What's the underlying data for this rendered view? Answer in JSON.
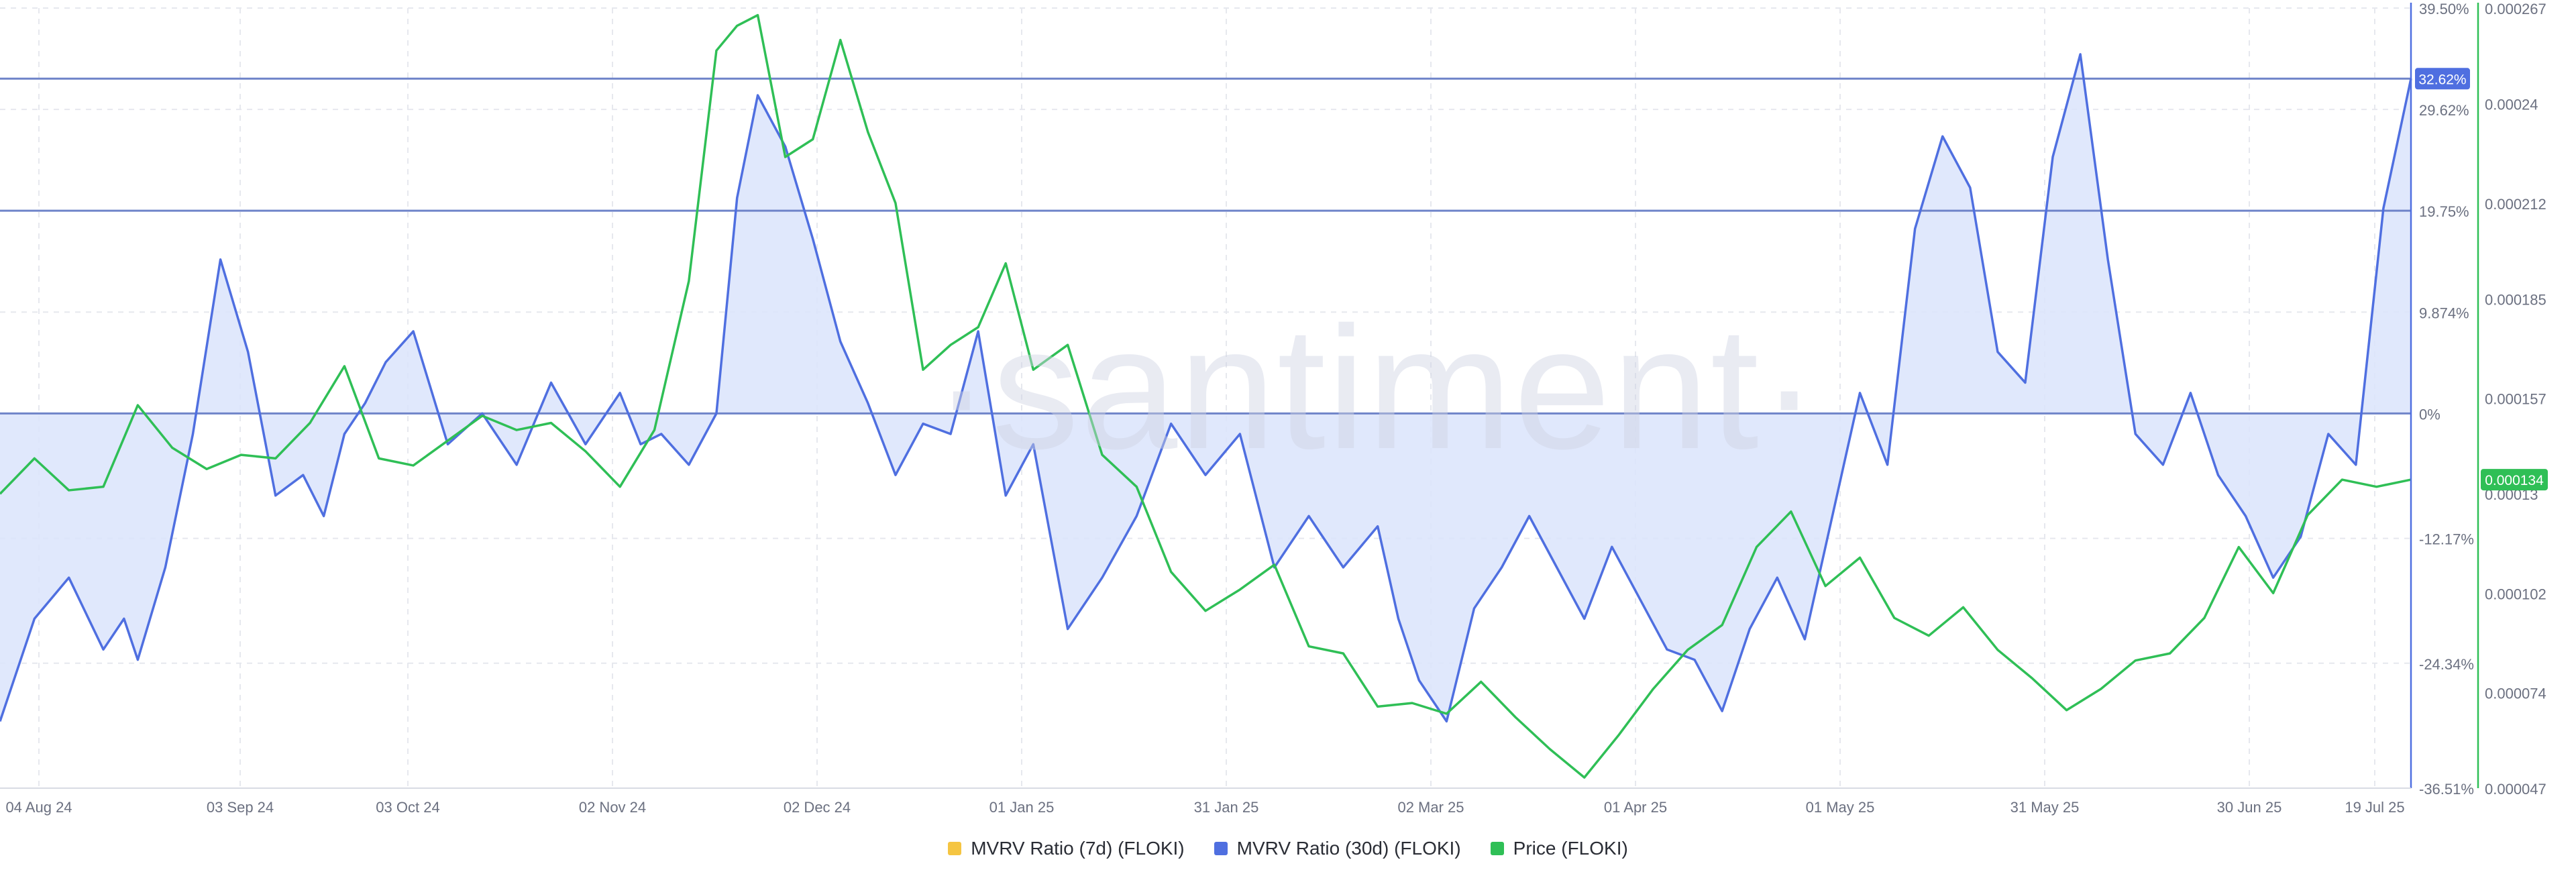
{
  "chart_data": {
    "type": "line",
    "watermark": "·santiment·",
    "colors": {
      "mvrv7d": "#f5c542",
      "mvrv30d": "#4f6fe0",
      "price": "#2fbf56",
      "fill": "#dbe4fb",
      "grid": "#e6e8ee",
      "hline": "#6f84c9"
    },
    "x_ticks": [
      "04 Aug 24",
      "03 Sep 24",
      "03 Oct 24",
      "02 Nov 24",
      "02 Dec 24",
      "01 Jan 25",
      "31 Jan 25",
      "02 Mar 25",
      "01 Apr 25",
      "01 May 25",
      "31 May 25",
      "30 Jun 25",
      "19 Jul 25"
    ],
    "y_left": {
      "ticks": [
        "39.50%",
        "29.62%",
        "19.75%",
        "9.874%",
        "0%",
        "-12.17%",
        "-24.34%",
        "-36.51%"
      ],
      "values": [
        39.5,
        29.62,
        19.75,
        9.874,
        0,
        -12.17,
        -24.34,
        -36.51
      ],
      "range": [
        -36.51,
        39.5
      ]
    },
    "y_right": {
      "ticks": [
        "0.000267",
        "0.00024",
        "0.000212",
        "0.000185",
        "0.000157",
        "0.00013",
        "0.000102",
        "0.000074",
        "0.000047"
      ],
      "values": [
        0.000267,
        0.00024,
        0.000212,
        0.000185,
        0.000157,
        0.00013,
        0.000102,
        7.4e-05,
        4.7e-05
      ],
      "range": [
        4.7e-05,
        0.000267
      ]
    },
    "horizontal_lines": [
      32.62,
      19.75,
      0
    ],
    "badges": {
      "mvrv30d": "32.62%",
      "price": "0.000134"
    },
    "legend": [
      "MVRV Ratio (7d) (FLOKI)",
      "MVRV Ratio (30d) (FLOKI)",
      "Price (FLOKI)"
    ],
    "x_range": [
      0,
      350
    ],
    "series": [
      {
        "name": "MVRV Ratio (30d) (FLOKI)",
        "axis": "left",
        "x": [
          0,
          5,
          10,
          15,
          18,
          20,
          24,
          28,
          32,
          36,
          40,
          44,
          47,
          50,
          53,
          56,
          60,
          65,
          70,
          75,
          80,
          85,
          90,
          93,
          96,
          100,
          104,
          107,
          110,
          114,
          118,
          122,
          126,
          130,
          134,
          138,
          142,
          146,
          150,
          155,
          160,
          165,
          170,
          175,
          180,
          185,
          190,
          195,
          200,
          203,
          206,
          210,
          214,
          218,
          222,
          226,
          230,
          234,
          238,
          242,
          246,
          250,
          254,
          258,
          262,
          266,
          270,
          274,
          278,
          282,
          286,
          290,
          294,
          298,
          302,
          306,
          310,
          314,
          318,
          322,
          326,
          330,
          334,
          338,
          342,
          346,
          350
        ],
        "y": [
          -30,
          -20,
          -16,
          -23,
          -20,
          -24,
          -15,
          -2,
          15,
          6,
          -8,
          -6,
          -10,
          -2,
          1,
          5,
          8,
          -3,
          0,
          -5,
          3,
          -3,
          2,
          -3,
          -2,
          -5,
          0,
          21,
          31,
          26,
          17,
          7,
          1,
          -6,
          -1,
          -2,
          8,
          -8,
          -3,
          -21,
          -16,
          -10,
          -1,
          -6,
          -2,
          -15,
          -10,
          -15,
          -11,
          -20,
          -26,
          -30,
          -19,
          -15,
          -10,
          -15,
          -20,
          -13,
          -18,
          -23,
          -24,
          -29,
          -21,
          -16,
          -22,
          -10,
          2,
          -5,
          18,
          27,
          22,
          6,
          3,
          25,
          35,
          15,
          -2,
          -5,
          2,
          -6,
          -10,
          -16,
          -12,
          -2,
          -5,
          20,
          32.62
        ]
      },
      {
        "name": "Price (FLOKI)",
        "axis": "right",
        "x": [
          0,
          5,
          10,
          15,
          20,
          25,
          30,
          35,
          40,
          45,
          50,
          55,
          60,
          65,
          70,
          75,
          80,
          85,
          90,
          95,
          100,
          104,
          107,
          110,
          114,
          118,
          122,
          126,
          130,
          134,
          138,
          142,
          146,
          150,
          155,
          160,
          165,
          170,
          175,
          180,
          185,
          190,
          195,
          200,
          205,
          210,
          215,
          220,
          225,
          230,
          235,
          240,
          245,
          250,
          255,
          260,
          265,
          270,
          275,
          280,
          285,
          290,
          295,
          300,
          305,
          310,
          315,
          320,
          325,
          330,
          335,
          340,
          345,
          350
        ],
        "y": [
          0.00013,
          0.00014,
          0.000131,
          0.000132,
          0.000155,
          0.000143,
          0.000137,
          0.000141,
          0.00014,
          0.00015,
          0.000166,
          0.00014,
          0.000138,
          0.000145,
          0.000152,
          0.000148,
          0.00015,
          0.000142,
          0.000132,
          0.000148,
          0.00019,
          0.000255,
          0.000262,
          0.000265,
          0.000225,
          0.00023,
          0.000258,
          0.000232,
          0.000212,
          0.000165,
          0.000172,
          0.000177,
          0.000195,
          0.000165,
          0.000172,
          0.000141,
          0.000132,
          0.000108,
          9.7e-05,
          0.000103,
          0.00011,
          8.7e-05,
          8.5e-05,
          7e-05,
          7.1e-05,
          6.8e-05,
          7.7e-05,
          6.7e-05,
          5.8e-05,
          5e-05,
          6.2e-05,
          7.5e-05,
          8.6e-05,
          9.3e-05,
          0.000115,
          0.000125,
          0.000104,
          0.000112,
          9.5e-05,
          9e-05,
          9.8e-05,
          8.6e-05,
          7.8e-05,
          6.9e-05,
          7.5e-05,
          8.3e-05,
          8.5e-05,
          9.5e-05,
          0.000115,
          0.000102,
          0.000124,
          0.000134,
          0.000132,
          0.000134
        ]
      }
    ]
  }
}
